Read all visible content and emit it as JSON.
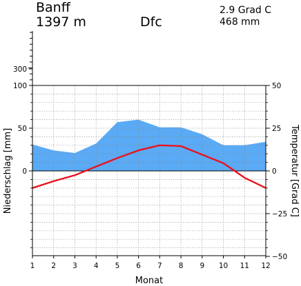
{
  "header": {
    "station": "Banff",
    "elevation": "1397 m",
    "climate_class": "Dfc",
    "annual_temp": "2.9 Grad C",
    "annual_precip": "468 mm"
  },
  "chart_data": {
    "type": "area",
    "xlabel": "Monat",
    "ylabel_left": "Niederschlag [mm]",
    "ylabel_right": "Temperatur [Grad C]",
    "x": [
      1,
      2,
      3,
      4,
      5,
      6,
      7,
      8,
      9,
      10,
      11,
      12
    ],
    "x_ticks": [
      "1",
      "2",
      "3",
      "4",
      "5",
      "6",
      "7",
      "8",
      "9",
      "10",
      "11",
      "12"
    ],
    "precip_ticks": [
      "300",
      "100",
      "50",
      "0"
    ],
    "temp_ticks": [
      "50",
      "25",
      "0",
      "−25",
      "−50"
    ],
    "precip_range": [
      0,
      100
    ],
    "temp_range": [
      -50,
      50
    ],
    "grid": true,
    "series": [
      {
        "kind": "precipitation",
        "axis": "left",
        "unit": "mm",
        "color": "#5aaaf5",
        "values": [
          31,
          24,
          21,
          32,
          57,
          60,
          51,
          51,
          43,
          30,
          30,
          34
        ]
      },
      {
        "kind": "temperature",
        "axis": "right",
        "unit": "Grad C",
        "color": "#e8141e",
        "values": [
          -10,
          -6,
          -2.5,
          2.5,
          7.5,
          12,
          15,
          14.5,
          9.5,
          4.5,
          -4,
          -10
        ]
      }
    ]
  }
}
